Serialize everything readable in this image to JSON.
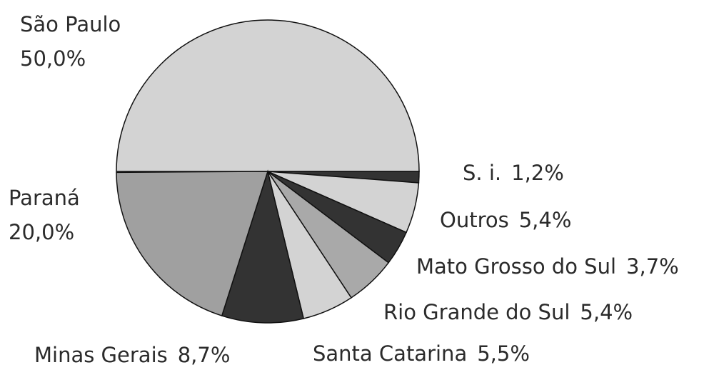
{
  "chart_data": {
    "type": "pie",
    "categories": [
      "São Paulo",
      "S. i.",
      "Outros",
      "Mato Grosso do Sul",
      "Rio Grande do Sul",
      "Santa Catarina",
      "Minas Gerais",
      "Paraná"
    ],
    "values": [
      50.0,
      1.2,
      5.4,
      3.7,
      5.4,
      5.5,
      8.7,
      20.0
    ],
    "value_labels": [
      "50,0%",
      "1,2%",
      "5,4%",
      "3,7%",
      "5,4%",
      "5,5%",
      "8,7%",
      "20,0%"
    ],
    "colors": [
      "#d3d3d3",
      "#333333",
      "#d3d3d3",
      "#333333",
      "#a9a9a9",
      "#d3d3d3",
      "#333333",
      "#a0a0a0"
    ]
  }
}
